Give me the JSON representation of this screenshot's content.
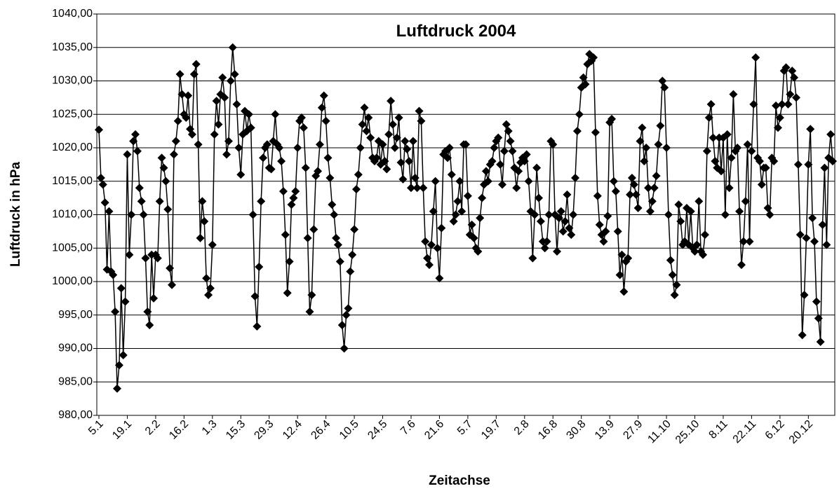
{
  "chart_data": {
    "type": "line",
    "title": "Luftdruck 2004",
    "y_label": "Luftdruck  in hPa",
    "x_label": "Zeitachse",
    "color": "#000000",
    "grid": true,
    "ylim": [
      980,
      1040
    ],
    "yticks": [
      {
        "value": 980,
        "label": "980,00"
      },
      {
        "value": 985,
        "label": "985,00"
      },
      {
        "value": 990,
        "label": "990,00"
      },
      {
        "value": 995,
        "label": "995,00"
      },
      {
        "value": 1000,
        "label": "1000,00"
      },
      {
        "value": 1005,
        "label": "1005,00"
      },
      {
        "value": 1010,
        "label": "1010,00"
      },
      {
        "value": 1015,
        "label": "1015,00"
      },
      {
        "value": 1020,
        "label": "1020,00"
      },
      {
        "value": 1025,
        "label": "1025,00"
      },
      {
        "value": 1030,
        "label": "1030,00"
      },
      {
        "value": 1035,
        "label": "1035,00"
      },
      {
        "value": 1040,
        "label": "1040,00"
      }
    ],
    "categories": [
      "5.1",
      null,
      null,
      null,
      null,
      null,
      null,
      null,
      null,
      null,
      null,
      null,
      null,
      null,
      "19.1",
      null,
      null,
      null,
      null,
      null,
      null,
      null,
      null,
      null,
      null,
      null,
      null,
      null,
      "2.2",
      null,
      null,
      null,
      null,
      null,
      null,
      null,
      null,
      null,
      null,
      null,
      null,
      null,
      "16.2",
      null,
      null,
      null,
      null,
      null,
      null,
      null,
      null,
      null,
      null,
      null,
      null,
      null,
      "1.3",
      null,
      null,
      null,
      null,
      null,
      null,
      null,
      null,
      null,
      null,
      null,
      null,
      null,
      "15.3",
      null,
      null,
      null,
      null,
      null,
      null,
      null,
      null,
      null,
      null,
      null,
      null,
      null,
      "29.3",
      null,
      null,
      null,
      null,
      null,
      null,
      null,
      null,
      null,
      null,
      null,
      null,
      null,
      "12.4",
      null,
      null,
      null,
      null,
      null,
      null,
      null,
      null,
      null,
      null,
      null,
      null,
      null,
      "26.4",
      null,
      null,
      null,
      null,
      null,
      null,
      null,
      null,
      null,
      null,
      null,
      null,
      null,
      "10.5",
      null,
      null,
      null,
      null,
      null,
      null,
      null,
      null,
      null,
      null,
      null,
      null,
      null,
      "24.5",
      null,
      null,
      null,
      null,
      null,
      null,
      null,
      null,
      null,
      null,
      null,
      null,
      null,
      "7.6",
      null,
      null,
      null,
      null,
      null,
      null,
      null,
      null,
      null,
      null,
      null,
      null,
      null,
      "21.6",
      null,
      null,
      null,
      null,
      null,
      null,
      null,
      null,
      null,
      null,
      null,
      null,
      null,
      "5.7",
      null,
      null,
      null,
      null,
      null,
      null,
      null,
      null,
      null,
      null,
      null,
      null,
      null,
      "19.7",
      null,
      null,
      null,
      null,
      null,
      null,
      null,
      null,
      null,
      null,
      null,
      null,
      null,
      "2.8",
      null,
      null,
      null,
      null,
      null,
      null,
      null,
      null,
      null,
      null,
      null,
      null,
      null,
      "16.8",
      null,
      null,
      null,
      null,
      null,
      null,
      null,
      null,
      null,
      null,
      null,
      null,
      null,
      "30.8",
      null,
      null,
      null,
      null,
      null,
      null,
      null,
      null,
      null,
      null,
      null,
      null,
      null,
      "13.9",
      null,
      null,
      null,
      null,
      null,
      null,
      null,
      null,
      null,
      null,
      null,
      null,
      null,
      "27.9",
      null,
      null,
      null,
      null,
      null,
      null,
      null,
      null,
      null,
      null,
      null,
      null,
      null,
      "11.10",
      null,
      null,
      null,
      null,
      null,
      null,
      null,
      null,
      null,
      null,
      null,
      null,
      null,
      "25.10",
      null,
      null,
      null,
      null,
      null,
      null,
      null,
      null,
      null,
      null,
      null,
      null,
      null,
      "8.11",
      null,
      null,
      null,
      null,
      null,
      null,
      null,
      null,
      null,
      null,
      null,
      null,
      null,
      "22.11",
      null,
      null,
      null,
      null,
      null,
      null,
      null,
      null,
      null,
      null,
      null,
      null,
      null,
      "6.12",
      null,
      null,
      null,
      null,
      null,
      null,
      null,
      null,
      null,
      null,
      null,
      null,
      null,
      "20.12",
      null,
      null,
      null,
      null,
      null,
      null,
      null,
      null,
      null,
      null,
      null,
      null
    ],
    "values": [
      1022.7,
      1015.5,
      1014.5,
      1011.8,
      1001.8,
      1010.5,
      1001.5,
      1001,
      995.5,
      984,
      987.5,
      999,
      989,
      997,
      1019,
      1004,
      1010,
      1021,
      1022,
      1019.5,
      1014,
      1012,
      1010,
      1003.5,
      995.5,
      993.5,
      1004,
      997.5,
      1004,
      1003.5,
      1012,
      1018.5,
      1017,
      1015,
      1010.8,
      1002,
      999.5,
      1019,
      1021,
      1024,
      1031,
      1028,
      1025,
      1024.5,
      1027.8,
      1022.8,
      1022,
      1031,
      1032.5,
      1020.5,
      1006.5,
      1012,
      1009,
      1000.5,
      998,
      999,
      1005.5,
      1022,
      1027,
      1023.5,
      1028,
      1030.5,
      1027.5,
      1019,
      1021,
      1030,
      1035,
      1031,
      1026.5,
      1020,
      1016,
      1022,
      1025.5,
      1022.5,
      1025,
      1023,
      1010,
      997.8,
      993.3,
      1002.2,
      1012,
      1018.5,
      1020,
      1020.5,
      1017,
      1016.8,
      1021,
      1025,
      1020.5,
      1020,
      1018,
      1013.5,
      1007,
      998.3,
      1003,
      1011.5,
      1012.5,
      1013.5,
      1020,
      1024,
      1024.5,
      1023,
      1017,
      1006.5,
      995.5,
      998,
      1007.8,
      1015.8,
      1016.5,
      1020.5,
      1026,
      1027.8,
      1024,
      1018.5,
      1015.5,
      1011.5,
      1010,
      1006.5,
      1005.5,
      1003,
      993.5,
      990,
      995,
      996,
      1001.5,
      1004,
      1007.8,
      1013.8,
      1016,
      1020,
      1023.5,
      1026,
      1022.5,
      1024.5,
      1021.5,
      1018.5,
      1018,
      1018.5,
      1021,
      1017.5,
      1020.5,
      1018,
      1016.8,
      1022,
      1027,
      1023.5,
      1020,
      1021.5,
      1024.5,
      1017.8,
      1015.3,
      1021,
      1019.8,
      1018,
      1014,
      1021,
      1015.5,
      1014,
      1025.5,
      1024,
      1014,
      1006,
      1003.5,
      1002.5,
      1005.5,
      1010.5,
      1015,
      1005,
      1000.5,
      1008,
      1019,
      1019.5,
      1018.5,
      1020,
      1016,
      1009,
      1010,
      1012,
      1015,
      1010.5,
      1020.5,
      1020.5,
      1012.8,
      1007,
      1008.5,
      1006.5,
      1005,
      1004.5,
      1009.5,
      1012.5,
      1014.5,
      1016.5,
      1015,
      1017.5,
      1018,
      1020,
      1021,
      1021.5,
      1017.5,
      1014.5,
      1019.5,
      1023.5,
      1022.5,
      1021,
      1019.5,
      1017,
      1014,
      1016.5,
      1017.8,
      1018.5,
      1018,
      1019,
      1015,
      1010.5,
      1003.5,
      1010,
      1017,
      1012.5,
      1009,
      1006,
      1005,
      1006,
      1010,
      1021,
      1020.5,
      1010,
      1004.5,
      1009.5,
      1010.5,
      1007.5,
      1009,
      1013,
      1008,
      1007,
      1010,
      1015.5,
      1022.5,
      1025,
      1029,
      1030.5,
      1029.5,
      1032.5,
      1034,
      1033,
      1033.5,
      1022.3,
      1012.8,
      1008.5,
      1007,
      1006,
      1007.5,
      1009.8,
      1023.8,
      1024.3,
      1015,
      1013.5,
      1007.5,
      1001,
      1004,
      998.5,
      1003,
      1003.5,
      1013,
      1015.5,
      1014.5,
      1013,
      1011,
      1021,
      1023,
      1018,
      1020,
      1014,
      1010.5,
      1012,
      1014,
      1015.8,
      1020.5,
      1023.3,
      1030,
      1029,
      1020,
      1010,
      1003.2,
      1001,
      998,
      999.5,
      1011.5,
      1009,
      1005.5,
      1006,
      1011,
      1005.5,
      1010.5,
      1005,
      1004.5,
      1005.5,
      1012,
      1004.5,
      1004,
      1007,
      1019.5,
      1024.5,
      1026.5,
      1021.5,
      1018,
      1017,
      1021.5,
      1016.5,
      1021.5,
      1010,
      1022,
      1014,
      1018.5,
      1028,
      1019.5,
      1020,
      1010.5,
      1002.5,
      1006,
      1012,
      1020.5,
      1006,
      1019.5,
      1026.5,
      1033.5,
      1018.5,
      1018,
      1014.5,
      1017,
      1017,
      1011,
      1010,
      1018.5,
      1018,
      1026.3,
      1023,
      1024.5,
      1026.5,
      1031.5,
      1032,
      1026.5,
      1028,
      1031.5,
      1030.5,
      1027.5,
      1017.5,
      1007,
      992,
      998,
      1006.5,
      1017.5,
      1022.8,
      1009.5,
      1006,
      997,
      994.5,
      991,
      1008.5,
      1017,
      1005.5,
      1018.5,
      1022,
      1018
    ]
  }
}
